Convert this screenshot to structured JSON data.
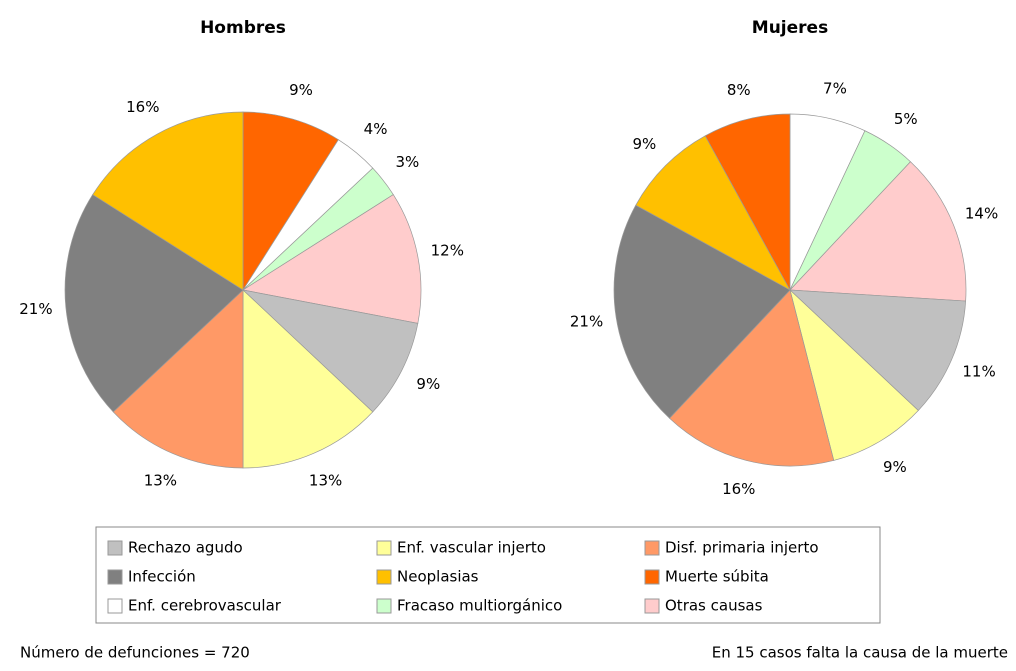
{
  "chart_data": [
    {
      "type": "pie",
      "title": "Hombres",
      "categories": [
        "Muerte súbita",
        "Enf. cerebrovascular",
        "Fracaso multiorgánico",
        "Otras causas",
        "Rechazo agudo",
        "Enf. vascular injerto",
        "Disf. primaria injerto",
        "Infección",
        "Neoplasias"
      ],
      "values": [
        9,
        4,
        3,
        12,
        9,
        13,
        13,
        21,
        16
      ],
      "value_labels": [
        "9%",
        "4%",
        "3%",
        "12%",
        "9%",
        "13%",
        "13%",
        "21%",
        "16%"
      ],
      "colors": [
        "#ff6600",
        "#ffffff",
        "#ccffcc",
        "#ffcccc",
        "#c0c0c0",
        "#ffff99",
        "#ff9966",
        "#808080",
        "#ffc000"
      ]
    },
    {
      "type": "pie",
      "title": "Mujeres",
      "categories": [
        "Enf. cerebrovascular",
        "Fracaso multiorgánico",
        "Otras causas",
        "Rechazo agudo",
        "Enf. vascular injerto",
        "Disf. primaria injerto",
        "Infección",
        "Neoplasias",
        "Muerte súbita"
      ],
      "values": [
        7,
        5,
        14,
        11,
        9,
        16,
        21,
        9,
        8
      ],
      "value_labels": [
        "7%",
        "5%",
        "14%",
        "11%",
        "9%",
        "16%",
        "21%",
        "9%",
        "8%"
      ],
      "colors": [
        "#ffffff",
        "#ccffcc",
        "#ffcccc",
        "#c0c0c0",
        "#ffff99",
        "#ff9966",
        "#808080",
        "#ffc000",
        "#ff6600"
      ]
    }
  ],
  "legend": [
    {
      "name": "Rechazo agudo",
      "color": "#c0c0c0"
    },
    {
      "name": "Enf. vascular injerto",
      "color": "#ffff99"
    },
    {
      "name": "Disf. primaria injerto",
      "color": "#ff9966"
    },
    {
      "name": "Infección",
      "color": "#808080"
    },
    {
      "name": "Neoplasias",
      "color": "#ffc000"
    },
    {
      "name": "Muerte súbita",
      "color": "#ff6600"
    },
    {
      "name": "Enf. cerebrovascular",
      "color": "#ffffff"
    },
    {
      "name": "Fracaso multiorgánico",
      "color": "#ccffcc"
    },
    {
      "name": "Otras causas",
      "color": "#ffcccc"
    }
  ],
  "footnotes": [
    "Número de defunciones = 720",
    "En 15 casos falta la causa de la muerte"
  ]
}
